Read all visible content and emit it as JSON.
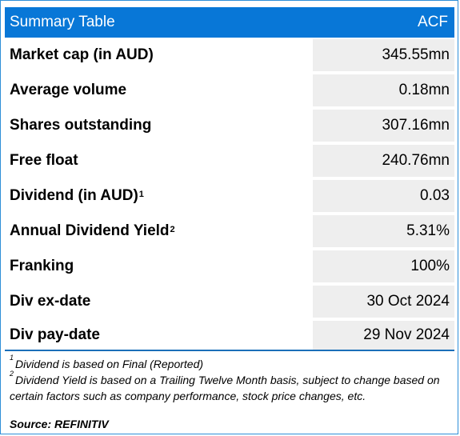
{
  "header": {
    "title": "Summary Table",
    "ticker": "ACF"
  },
  "rows": [
    {
      "label": "Market cap (in AUD)",
      "value": "345.55mn"
    },
    {
      "label": "Average volume",
      "value": "0.18mn"
    },
    {
      "label": "Shares outstanding",
      "value": "307.16mn"
    },
    {
      "label": "Free float",
      "value": "240.76mn"
    },
    {
      "label": "Dividend (in AUD)",
      "sup": "1",
      "value": "0.03"
    },
    {
      "label": "Annual Dividend Yield",
      "sup": "2",
      "value": "5.31%"
    },
    {
      "label": "Franking",
      "value": "100%"
    },
    {
      "label": "Div ex-date",
      "value": "30 Oct 2024"
    },
    {
      "label": "Div pay-date",
      "value": "29 Nov 2024"
    }
  ],
  "footnotes": [
    {
      "marker": "1",
      "text": "Dividend is based on Final (Reported)"
    },
    {
      "marker": "2",
      "text": "Dividend Yield is based on a Trailing Twelve Month basis, subject to change based on certain factors such as company performance, stock price changes, etc."
    }
  ],
  "source": "Source: REFINITIV",
  "colors": {
    "header_bg": "#0877d7",
    "value_bg": "#eeeeee",
    "border": "#2f8fd8"
  }
}
